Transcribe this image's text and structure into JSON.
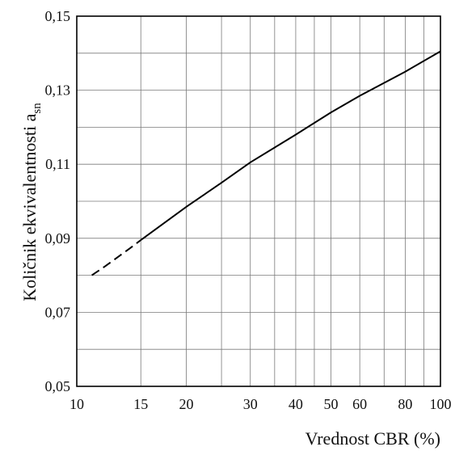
{
  "chart_data": {
    "type": "line",
    "xlabel": "Vrednost CBR (%)",
    "ylabel": "Količnik ekvivalentnosti a",
    "ylabel_subscript": "sn",
    "x_scale": "log",
    "xlim": [
      10,
      100
    ],
    "ylim": [
      0.05,
      0.15
    ],
    "x_ticks": [
      10,
      15,
      20,
      30,
      40,
      50,
      60,
      80,
      100
    ],
    "x_tick_labels": [
      "10",
      "15",
      "20",
      "30",
      "40",
      "50",
      "60",
      "80",
      "100"
    ],
    "x_gridlines": [
      10,
      15,
      20,
      25,
      30,
      35,
      40,
      45,
      50,
      60,
      70,
      80,
      90,
      100
    ],
    "y_ticks": [
      0.05,
      0.07,
      0.09,
      0.11,
      0.13,
      0.15
    ],
    "y_tick_labels": [
      "0,05",
      "0,07",
      "0,09",
      "0,11",
      "0,13",
      "0,15"
    ],
    "y_gridlines": [
      0.05,
      0.06,
      0.07,
      0.08,
      0.09,
      0.1,
      0.11,
      0.12,
      0.13,
      0.14,
      0.15
    ],
    "grid": true,
    "series": [
      {
        "style": "dashed",
        "x": [
          11,
          12,
          13,
          14,
          15
        ],
        "y": [
          0.08,
          0.0825,
          0.085,
          0.0873,
          0.0895
        ]
      },
      {
        "style": "solid",
        "x": [
          15,
          20,
          25,
          30,
          40,
          50,
          60,
          80,
          100
        ],
        "y": [
          0.0895,
          0.0985,
          0.105,
          0.1105,
          0.118,
          0.124,
          0.1285,
          0.135,
          0.1405
        ]
      }
    ]
  }
}
